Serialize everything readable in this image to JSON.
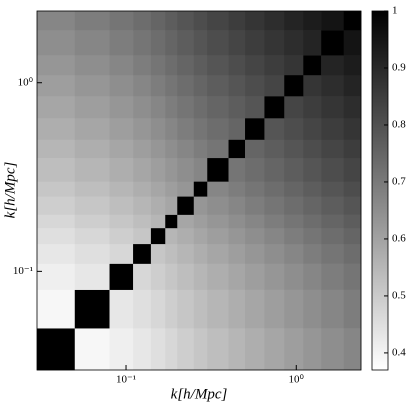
{
  "chart_data": {
    "type": "heatmap",
    "xlabel": "k[h/Mpc]",
    "ylabel": "k[h/Mpc]",
    "xscale": "log",
    "yscale": "log",
    "bins": [
      0.03,
      0.05,
      0.08,
      0.11,
      0.14,
      0.17,
      0.2,
      0.25,
      0.3,
      0.4,
      0.5,
      0.65,
      0.85,
      1.1,
      1.4,
      1.9,
      2.4
    ],
    "xlim": [
      0.03,
      2.4
    ],
    "ylim": [
      0.03,
      2.4
    ],
    "xticks": [
      {
        "value": 0.1,
        "label": "10⁻¹"
      },
      {
        "value": 1,
        "label": "10⁰"
      }
    ],
    "yticks": [
      {
        "value": 0.1,
        "label": "10⁻¹"
      },
      {
        "value": 1,
        "label": "10⁰"
      }
    ],
    "colormap": "gray_r",
    "clim": [
      0.37,
      1
    ],
    "cticks": [
      0.4,
      0.5,
      0.6,
      0.7,
      0.8,
      0.9,
      1
    ],
    "z": [
      [
        1,
        0.39,
        0.41,
        0.43,
        0.45,
        0.47,
        0.49,
        0.51,
        0.53,
        0.55,
        0.57,
        0.59,
        0.61,
        0.63,
        0.65,
        0.67
      ],
      [
        0.39,
        1,
        0.43,
        0.45,
        0.47,
        0.49,
        0.51,
        0.53,
        0.55,
        0.57,
        0.59,
        0.61,
        0.63,
        0.65,
        0.67,
        0.69
      ],
      [
        0.41,
        0.43,
        1,
        0.47,
        0.49,
        0.51,
        0.53,
        0.55,
        0.57,
        0.59,
        0.61,
        0.63,
        0.65,
        0.67,
        0.69,
        0.71
      ],
      [
        0.43,
        0.45,
        0.47,
        1,
        0.51,
        0.53,
        0.55,
        0.57,
        0.59,
        0.61,
        0.63,
        0.65,
        0.67,
        0.69,
        0.71,
        0.73
      ],
      [
        0.45,
        0.47,
        0.49,
        0.51,
        1,
        0.55,
        0.57,
        0.59,
        0.61,
        0.63,
        0.65,
        0.67,
        0.69,
        0.71,
        0.73,
        0.75
      ],
      [
        0.47,
        0.49,
        0.51,
        0.53,
        0.55,
        1,
        0.59,
        0.61,
        0.63,
        0.65,
        0.67,
        0.69,
        0.71,
        0.73,
        0.75,
        0.77
      ],
      [
        0.49,
        0.51,
        0.53,
        0.55,
        0.57,
        0.59,
        1,
        0.63,
        0.65,
        0.67,
        0.69,
        0.71,
        0.73,
        0.75,
        0.77,
        0.79
      ],
      [
        0.51,
        0.53,
        0.55,
        0.57,
        0.59,
        0.61,
        0.63,
        1,
        0.67,
        0.69,
        0.71,
        0.73,
        0.75,
        0.77,
        0.79,
        0.81
      ],
      [
        0.53,
        0.55,
        0.57,
        0.59,
        0.61,
        0.63,
        0.65,
        0.67,
        1,
        0.71,
        0.73,
        0.75,
        0.77,
        0.79,
        0.81,
        0.83
      ],
      [
        0.55,
        0.57,
        0.59,
        0.61,
        0.63,
        0.65,
        0.67,
        0.69,
        0.71,
        1,
        0.75,
        0.77,
        0.79,
        0.81,
        0.83,
        0.85
      ],
      [
        0.57,
        0.59,
        0.61,
        0.63,
        0.65,
        0.67,
        0.69,
        0.71,
        0.73,
        0.75,
        1,
        0.79,
        0.81,
        0.83,
        0.85,
        0.87
      ],
      [
        0.59,
        0.61,
        0.63,
        0.65,
        0.67,
        0.69,
        0.71,
        0.73,
        0.75,
        0.77,
        0.79,
        1,
        0.83,
        0.85,
        0.87,
        0.89
      ],
      [
        0.61,
        0.63,
        0.65,
        0.67,
        0.69,
        0.71,
        0.73,
        0.75,
        0.77,
        0.79,
        0.81,
        0.83,
        1,
        0.87,
        0.89,
        0.91
      ],
      [
        0.63,
        0.65,
        0.67,
        0.69,
        0.71,
        0.73,
        0.75,
        0.77,
        0.79,
        0.81,
        0.83,
        0.85,
        0.87,
        1,
        0.91,
        0.93
      ],
      [
        0.65,
        0.67,
        0.69,
        0.71,
        0.73,
        0.75,
        0.77,
        0.79,
        0.81,
        0.83,
        0.85,
        0.87,
        0.89,
        0.91,
        1,
        0.95
      ],
      [
        0.67,
        0.69,
        0.71,
        0.73,
        0.75,
        0.77,
        0.79,
        0.81,
        0.83,
        0.85,
        0.87,
        0.89,
        0.91,
        0.93,
        0.95,
        1
      ]
    ]
  }
}
